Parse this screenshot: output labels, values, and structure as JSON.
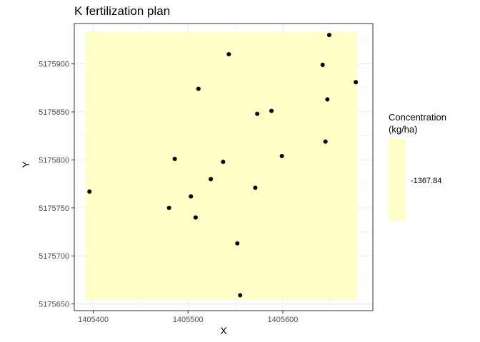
{
  "chart_data": {
    "type": "scatter",
    "title": "K fertilization plan",
    "xlabel": "X",
    "ylabel": "Y",
    "xlim": [
      1405380,
      1405695
    ],
    "ylim": [
      5175643,
      5175942
    ],
    "x_ticks": [
      1405400,
      1405500,
      1405600
    ],
    "x_tick_labels": [
      "1405400",
      "1405500",
      "1405600"
    ],
    "y_ticks": [
      5175650,
      5175700,
      5175750,
      5175800,
      5175850,
      5175900
    ],
    "y_tick_labels": [
      "5175650",
      "5175700",
      "5175750",
      "5175800",
      "5175850",
      "5175900"
    ],
    "grid": true,
    "background_raster": {
      "x_range": [
        1405392,
        1405678
      ],
      "y_range": [
        5175654,
        5175933
      ],
      "value": -1367.84,
      "color": "#ffffc8"
    },
    "legend": {
      "title_lines": [
        "Concentration",
        "(kg/ha)"
      ],
      "label": "-1367.84",
      "position": "right",
      "color": "#ffffc8"
    },
    "points": [
      {
        "x": 1405396,
        "y": 5175767
      },
      {
        "x": 1405480,
        "y": 5175750
      },
      {
        "x": 1405486,
        "y": 5175801
      },
      {
        "x": 1405503,
        "y": 5175762
      },
      {
        "x": 1405508,
        "y": 5175740
      },
      {
        "x": 1405511,
        "y": 5175874
      },
      {
        "x": 1405524,
        "y": 5175780
      },
      {
        "x": 1405537,
        "y": 5175798
      },
      {
        "x": 1405543,
        "y": 5175910
      },
      {
        "x": 1405552,
        "y": 5175713
      },
      {
        "x": 1405555,
        "y": 5175659
      },
      {
        "x": 1405571,
        "y": 5175771
      },
      {
        "x": 1405573,
        "y": 5175848
      },
      {
        "x": 1405588,
        "y": 5175851
      },
      {
        "x": 1405599,
        "y": 5175804
      },
      {
        "x": 1405642,
        "y": 5175899
      },
      {
        "x": 1405645,
        "y": 5175819
      },
      {
        "x": 1405647,
        "y": 5175863
      },
      {
        "x": 1405649,
        "y": 5175930
      },
      {
        "x": 1405677,
        "y": 5175881
      }
    ],
    "point_color": "#000000",
    "panel_border_color": "#333333",
    "grid_color": "#ebebeb"
  }
}
